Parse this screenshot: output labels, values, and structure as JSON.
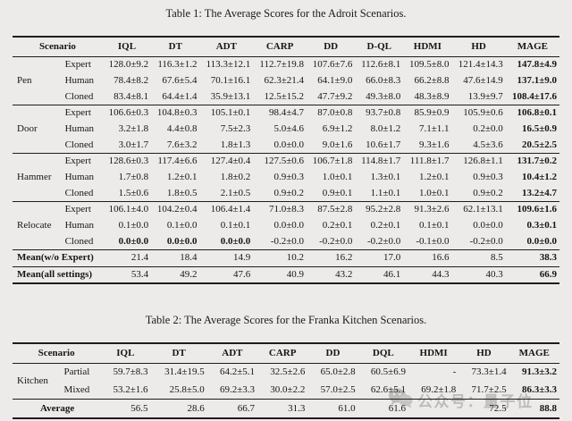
{
  "table1": {
    "title": "Table 1: The Average Scores for the Adroit Scenarios.",
    "columns": [
      "Scenario",
      "IQL",
      "DT",
      "ADT",
      "CARP",
      "DD",
      "D-QL",
      "HDMI",
      "HD",
      "MAGE"
    ],
    "groups": [
      {
        "name": "Pen",
        "rows": [
          {
            "setting": "Expert",
            "values": [
              "128.0±9.2",
              "116.3±1.2",
              "113.3±12.1",
              "112.7±19.8",
              "107.6±7.6",
              "112.6±8.1",
              "109.5±8.0",
              "121.4±14.3",
              "147.8±4.9"
            ],
            "bold": [
              8
            ]
          },
          {
            "setting": "Human",
            "values": [
              "78.4±8.2",
              "67.6±5.4",
              "70.1±16.1",
              "62.3±21.4",
              "64.1±9.0",
              "66.0±8.3",
              "66.2±8.8",
              "47.6±14.9",
              "137.1±9.0"
            ],
            "bold": [
              8
            ]
          },
          {
            "setting": "Cloned",
            "values": [
              "83.4±8.1",
              "64.4±1.4",
              "35.9±13.1",
              "12.5±15.2",
              "47.7±9.2",
              "49.3±8.0",
              "48.3±8.9",
              "13.9±9.7",
              "108.4±17.6"
            ],
            "bold": [
              8
            ]
          }
        ]
      },
      {
        "name": "Door",
        "rows": [
          {
            "setting": "Expert",
            "values": [
              "106.6±0.3",
              "104.8±0.3",
              "105.1±0.1",
              "98.4±4.7",
              "87.0±0.8",
              "93.7±0.8",
              "85.9±0.9",
              "105.9±0.6",
              "106.8±0.1"
            ],
            "bold": [
              8
            ]
          },
          {
            "setting": "Human",
            "values": [
              "3.2±1.8",
              "4.4±0.8",
              "7.5±2.3",
              "5.0±4.6",
              "6.9±1.2",
              "8.0±1.2",
              "7.1±1.1",
              "0.2±0.0",
              "16.5±0.9"
            ],
            "bold": [
              8
            ]
          },
          {
            "setting": "Cloned",
            "values": [
              "3.0±1.7",
              "7.6±3.2",
              "1.8±1.3",
              "0.0±0.0",
              "9.0±1.6",
              "10.6±1.7",
              "9.3±1.6",
              "4.5±3.6",
              "20.5±2.5"
            ],
            "bold": [
              8
            ]
          }
        ]
      },
      {
        "name": "Hammer",
        "rows": [
          {
            "setting": "Expert",
            "values": [
              "128.6±0.3",
              "117.4±6.6",
              "127.4±0.4",
              "127.5±0.6",
              "106.7±1.8",
              "114.8±1.7",
              "111.8±1.7",
              "126.8±1.1",
              "131.7±0.2"
            ],
            "bold": [
              8
            ]
          },
          {
            "setting": "Human",
            "values": [
              "1.7±0.8",
              "1.2±0.1",
              "1.8±0.2",
              "0.9±0.3",
              "1.0±0.1",
              "1.3±0.1",
              "1.2±0.1",
              "0.9±0.3",
              "10.4±1.2"
            ],
            "bold": [
              8
            ]
          },
          {
            "setting": "Cloned",
            "values": [
              "1.5±0.6",
              "1.8±0.5",
              "2.1±0.5",
              "0.9±0.2",
              "0.9±0.1",
              "1.1±0.1",
              "1.0±0.1",
              "0.9±0.2",
              "13.2±4.7"
            ],
            "bold": [
              8
            ]
          }
        ]
      },
      {
        "name": "Relocate",
        "rows": [
          {
            "setting": "Expert",
            "values": [
              "106.1±4.0",
              "104.2±0.4",
              "106.4±1.4",
              "71.0±8.3",
              "87.5±2.8",
              "95.2±2.8",
              "91.3±2.6",
              "62.1±13.1",
              "109.6±1.6"
            ],
            "bold": [
              8
            ]
          },
          {
            "setting": "Human",
            "values": [
              "0.1±0.0",
              "0.1±0.0",
              "0.1±0.1",
              "0.0±0.0",
              "0.2±0.1",
              "0.2±0.1",
              "0.1±0.1",
              "0.0±0.0",
              "0.3±0.1"
            ],
            "bold": [
              8
            ]
          },
          {
            "setting": "Cloned",
            "values": [
              "0.0±0.0",
              "0.0±0.0",
              "0.0±0.0",
              "-0.2±0.0",
              "-0.2±0.0",
              "-0.2±0.0",
              "-0.1±0.0",
              "-0.2±0.0",
              "0.0±0.0"
            ],
            "bold": [
              0,
              1,
              2,
              8
            ]
          }
        ]
      }
    ],
    "summary_align": "left",
    "summary": [
      {
        "label": "Mean(w/o Expert)",
        "values": [
          "21.4",
          "18.4",
          "14.9",
          "10.2",
          "16.2",
          "17.0",
          "16.6",
          "8.5",
          "38.3"
        ],
        "bold": [
          8
        ]
      },
      {
        "label": "Mean(all settings)",
        "values": [
          "53.4",
          "49.2",
          "47.6",
          "40.9",
          "43.2",
          "46.1",
          "44.3",
          "40.3",
          "66.9"
        ],
        "bold": [
          8
        ]
      }
    ]
  },
  "table2": {
    "title": "Table 2: The Average Scores for the Franka Kitchen Scenarios.",
    "columns": [
      "Scenario",
      "IQL",
      "DT",
      "ADT",
      "CARP",
      "DD",
      "DQL",
      "HDMI",
      "HD",
      "MAGE"
    ],
    "groups": [
      {
        "name": "Kitchen",
        "rows": [
          {
            "setting": "Partial",
            "values": [
              "59.7±8.3",
              "31.4±19.5",
              "64.2±5.1",
              "32.5±2.6",
              "65.0±2.8",
              "60.5±6.9",
              "-",
              "73.3±1.4",
              "91.3±3.2"
            ],
            "bold": [
              8
            ]
          },
          {
            "setting": "Mixed",
            "values": [
              "53.2±1.6",
              "25.8±5.0",
              "69.2±3.3",
              "30.0±2.2",
              "57.0±2.5",
              "62.6±5.1",
              "69.2±1.8",
              "71.7±2.5",
              "86.3±3.3"
            ],
            "bold": [
              8
            ]
          }
        ]
      }
    ],
    "summary_align": "center",
    "summary": [
      {
        "label": "Average",
        "values": [
          "56.5",
          "28.6",
          "66.7",
          "31.3",
          "61.0",
          "61.6",
          "",
          "72.5",
          "88.8"
        ],
        "bold": [
          8
        ]
      }
    ]
  },
  "watermark": {
    "text": "公众号：量子位",
    "color": "#b3b1ac"
  }
}
